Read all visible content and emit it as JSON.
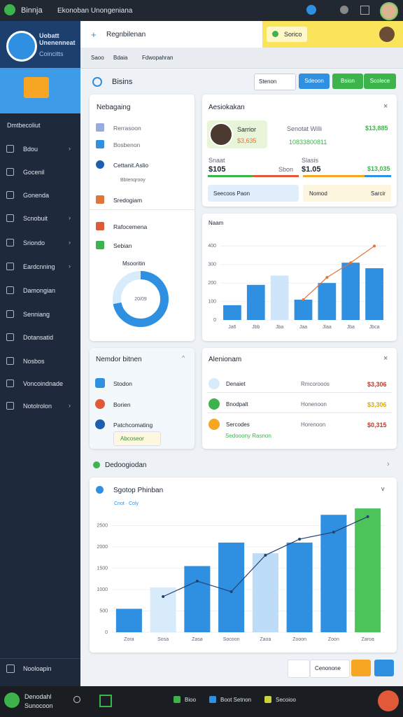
{
  "topbar": {
    "app": "Binnja",
    "title": "Ekonoban Unongeniana"
  },
  "sidebar": {
    "brand": "Uobatt Unenenneat",
    "brand_sub": "Coincitts",
    "section": "Dmtbecoliut",
    "items": [
      "Bdou",
      "Gocenil",
      "Gonenda",
      "Scnobuit",
      "Sriondo",
      "Eardcnning",
      "Damongian",
      "Senniang",
      "Dotansatid",
      "Nosbos",
      "Voncoindnade",
      "Notolrolon"
    ],
    "footer": "Nooloapin"
  },
  "header": {
    "search": "Regnbilenan",
    "action": "Sorico",
    "tabs": [
      "Saoo",
      "Bdaia",
      "Fdwopahran"
    ]
  },
  "toolbar": {
    "title": "Bisins",
    "select": "Stenon",
    "buttons": [
      "Sdeoon",
      "Bsion",
      "Scolece"
    ]
  },
  "nav_card": {
    "title": "Nebagaing",
    "items": [
      "Rerrasoon",
      "Bosbenon",
      "Cettanit.Aslio",
      "Bbtenqrooy",
      "Sredogiam",
      "Rafocemena",
      "Sebian"
    ],
    "donut_label": "Msooritin",
    "donut_center": "20/09",
    "donut_percent": 72
  },
  "account_card": {
    "title": "Aesiokakan",
    "user": "Sarrior",
    "user_sub": "$3,635",
    "stat1_label": "Senotat Willi",
    "stat1_value": "$13,885",
    "stat2": "10833800811",
    "a_label": "Snaat",
    "a_value": "$105",
    "b_label": "Sbon",
    "b_value": "$1.05",
    "c_label": "Slasis",
    "c_value": "$13,035",
    "button1": "Seecoos Paon",
    "button2": "Nomod",
    "button3": "Sarcir"
  },
  "mid_chart": {
    "type": "bar",
    "title": "Naam",
    "categories": [
      "Ja6",
      "Jbb",
      "Jba",
      "Jaa",
      "Jlaa",
      "Jba",
      "Jbca"
    ],
    "values": [
      80,
      190,
      240,
      110,
      200,
      310,
      280
    ],
    "colors": [
      "#2f8fe0",
      "#2f8fe0",
      "#cfe6fa",
      "#2f8fe0",
      "#2f8fe0",
      "#2f8fe0",
      "#2f8fe0"
    ],
    "line": [
      null,
      null,
      null,
      110,
      230,
      310,
      400
    ],
    "line_color": "#e0743a",
    "ylim": [
      0,
      500
    ],
    "yticks": [
      0,
      100,
      200,
      300,
      400
    ]
  },
  "list_card": {
    "title": "Nemdor bitnen",
    "items": [
      "Stodon",
      "Borien",
      "Patchcomating"
    ],
    "tag": "Abcoseor"
  },
  "alert_card": {
    "title": "Alenionam",
    "rows": [
      {
        "name": "Denaiet",
        "status": "Rmcorooos",
        "amount": "$3,306"
      },
      {
        "name": "Bnodpalt",
        "status": "Honenoon",
        "amount": "$3,306"
      },
      {
        "name": "Sercodes",
        "status": "Horenoon",
        "amount": "$0,315"
      }
    ],
    "footer": "Sedooony Rasnon"
  },
  "section": {
    "title": "Dedoogiodan"
  },
  "big_chart": {
    "type": "bar",
    "title": "Sgotop Phinban",
    "subtitle": "Cnot · Coly",
    "categories": [
      "Zora",
      "Sosa",
      "Zasa",
      "Socoon",
      "Zaoa",
      "Zooon",
      "Zoon",
      "Zaroa"
    ],
    "values": [
      550,
      1050,
      1550,
      2100,
      1850,
      2100,
      2750,
      2900
    ],
    "colors": [
      "#2f8fe0",
      "#d8ebfa",
      "#2f8fe0",
      "#2f8fe0",
      "#bcdcf7",
      "#2f8fe0",
      "#2f8fe0",
      "#4cc45a"
    ],
    "line": [
      null,
      836,
      1197,
      951,
      1804,
      2181,
      2345,
      2706
    ],
    "line_color": "#24406e",
    "ylim": [
      0,
      3000
    ],
    "yticks": [
      0,
      500,
      1000,
      1500,
      2000,
      2500
    ]
  },
  "footer_buttons": {
    "select": "Cenonone"
  },
  "bottombar": {
    "user": "Denodahl",
    "user_sub": "Sunocoon",
    "items": [
      "Bioo",
      "Boot Setnon",
      "Secoioo"
    ]
  }
}
